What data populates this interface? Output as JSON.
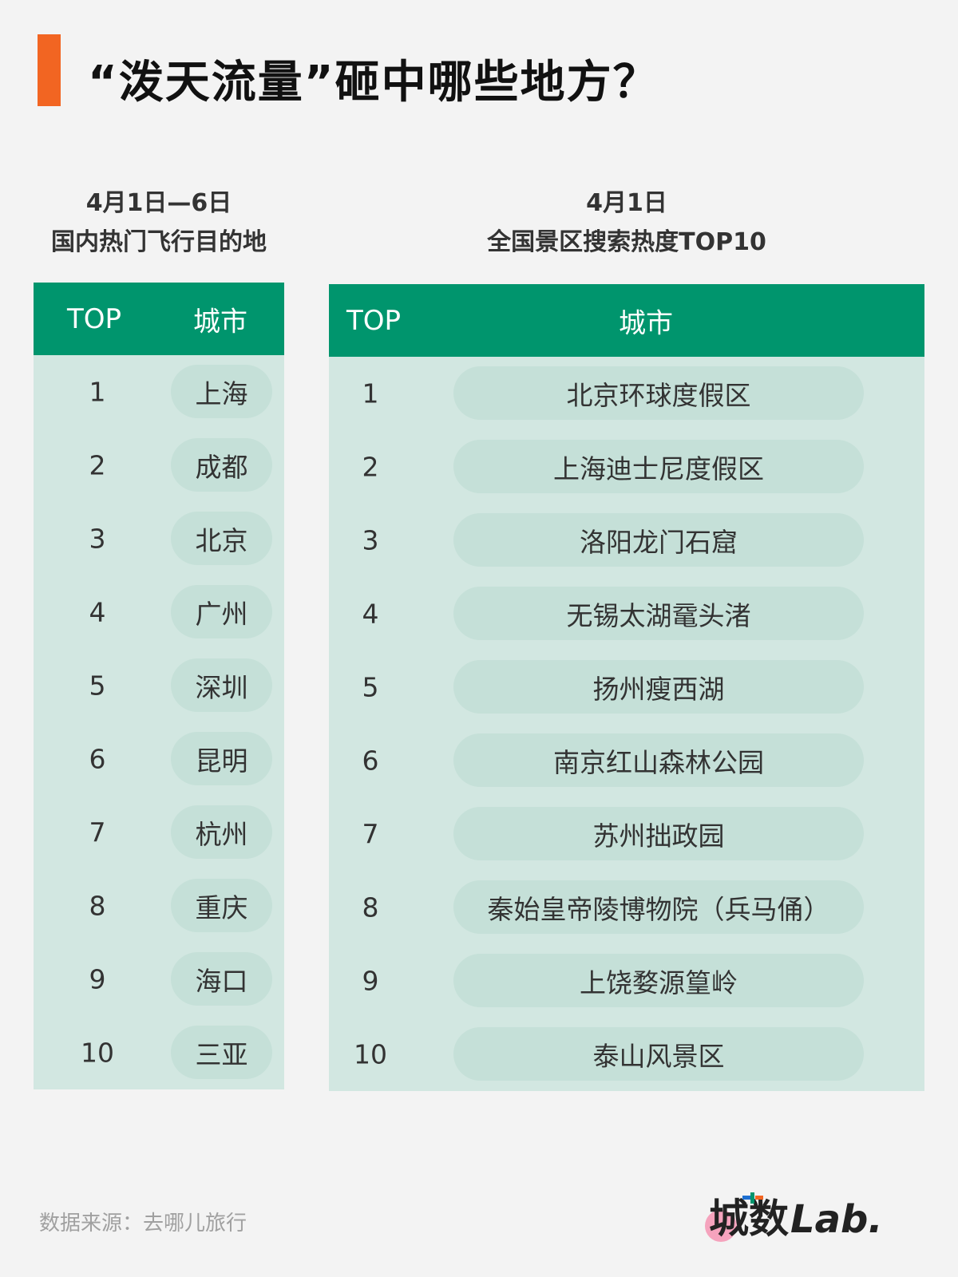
{
  "title": "“泼天流量”砸中哪些地方？",
  "accent_color": "#f26522",
  "header_color": "#00956d",
  "left": {
    "subtitle_line1": "4月1日—6日",
    "subtitle_line2": "国内热门飞行目的地",
    "col_top": "TOP",
    "col_city": "城市",
    "rows": [
      {
        "rank": "1",
        "name": "上海"
      },
      {
        "rank": "2",
        "name": "成都"
      },
      {
        "rank": "3",
        "name": "北京"
      },
      {
        "rank": "4",
        "name": "广州"
      },
      {
        "rank": "5",
        "name": "深圳"
      },
      {
        "rank": "6",
        "name": "昆明"
      },
      {
        "rank": "7",
        "name": "杭州"
      },
      {
        "rank": "8",
        "name": "重庆"
      },
      {
        "rank": "9",
        "name": "海口"
      },
      {
        "rank": "10",
        "name": "三亚"
      }
    ]
  },
  "right": {
    "subtitle_line1": "4月1日",
    "subtitle_line2": "全国景区搜索热度TOP10",
    "col_top": "TOP",
    "col_city": "城市",
    "rows": [
      {
        "rank": "1",
        "name": "北京环球度假区"
      },
      {
        "rank": "2",
        "name": "上海迪士尼度假区"
      },
      {
        "rank": "3",
        "name": "洛阳龙门石窟"
      },
      {
        "rank": "4",
        "name": "无锡太湖鼋头渚"
      },
      {
        "rank": "5",
        "name": "扬州瘦西湖"
      },
      {
        "rank": "6",
        "name": "南京红山森林公园"
      },
      {
        "rank": "7",
        "name": "苏州拙政园"
      },
      {
        "rank": "8",
        "name": "秦始皇帝陵博物院（兵马俑）"
      },
      {
        "rank": "9",
        "name": "上饶婺源篁岭"
      },
      {
        "rank": "10",
        "name": "泰山风景区"
      }
    ]
  },
  "source": "数据来源：去哪儿旅行",
  "logo": "城数Lab."
}
